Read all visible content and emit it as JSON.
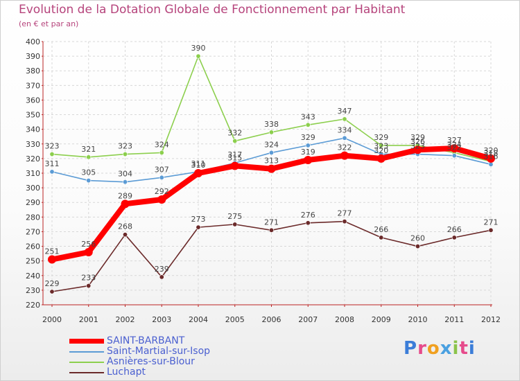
{
  "title": "Evolution de la Dotation Globale de Fonctionnement par Habitant",
  "subtitle": "(en € et par an)",
  "logo": {
    "text": "Proxiti",
    "letter_colors": [
      "#3b7dd8",
      "#e64b8b",
      "#f0a020",
      "#4aa0e0",
      "#8bc34a",
      "#e64b8b",
      "#3b7dd8"
    ]
  },
  "chart_data": {
    "type": "line",
    "title": "Evolution de la Dotation Globale de Fonctionnement par Habitant",
    "ylabel": "(en € et par an)",
    "xlabel": "",
    "categories": [
      "2000",
      "2001",
      "2002",
      "2003",
      "2004",
      "2005",
      "2006",
      "2007",
      "2008",
      "2009",
      "2010",
      "2011",
      "2012"
    ],
    "ylim": [
      220,
      400
    ],
    "ystep": 10,
    "grid": true,
    "legend": "bottom-left",
    "series": [
      {
        "name": "SAINT-BARBANT",
        "color": "#ff0000",
        "values": [
          251,
          256,
          289,
          292,
          310,
          315,
          313,
          319,
          322,
          320,
          326,
          327,
          320
        ]
      },
      {
        "name": "Saint-Martial-sur-Isop",
        "color": "#5b9bd5",
        "values": [
          311,
          305,
          304,
          307,
          311,
          317,
          324,
          329,
          334,
          323,
          323,
          322,
          316
        ]
      },
      {
        "name": "Asnières-sur-Blour",
        "color": "#8ccf4d",
        "values": [
          323,
          321,
          323,
          324,
          390,
          332,
          338,
          343,
          347,
          329,
          329,
          324,
          318
        ]
      },
      {
        "name": "Luchapt",
        "color": "#6b2a2a",
        "values": [
          229,
          233,
          268,
          239,
          273,
          275,
          271,
          276,
          277,
          266,
          260,
          266,
          271
        ]
      }
    ],
    "point_labels": [
      {
        "series": 0,
        "labels": [
          "251",
          "256",
          "289",
          "292",
          "310",
          "315",
          "313",
          "319",
          "322",
          "320",
          "326",
          "327",
          "320"
        ]
      },
      {
        "series": 1,
        "labels": [
          "311",
          "305",
          "304",
          "307",
          "311",
          "317",
          "324",
          "329",
          "334",
          "323",
          "323",
          "322",
          "316"
        ]
      },
      {
        "series": 2,
        "labels": [
          "323",
          "321",
          "323",
          "324",
          "390",
          "332",
          "338",
          "343",
          "347",
          "329",
          "329",
          "324",
          "318"
        ]
      },
      {
        "series": 3,
        "labels": [
          "229",
          "233",
          "268",
          "239",
          "273",
          "275",
          "271",
          "276",
          "277",
          "266",
          "260",
          "266",
          "271"
        ]
      }
    ]
  }
}
